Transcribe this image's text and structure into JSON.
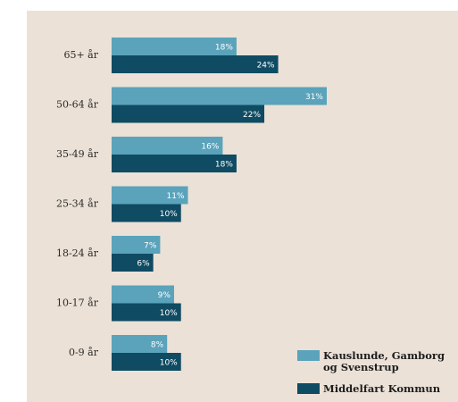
{
  "chart_data": {
    "type": "bar",
    "orientation": "horizontal",
    "categories": [
      "65+ år",
      "50-64 år",
      "35-49 år",
      "25-34 år",
      "18-24 år",
      "10-17 år",
      "0-9 år"
    ],
    "series": [
      {
        "name": "Kauslunde, Gamborg og Svenstrup",
        "name_lines": [
          "Kauslunde, Gamborg",
          "og Svenstrup"
        ],
        "values": [
          18,
          31,
          16,
          11,
          7,
          9,
          8
        ],
        "labels": [
          "18%",
          "31%",
          "16%",
          "11%",
          "7%",
          "9%",
          "8%"
        ],
        "color": "#5aa3bb"
      },
      {
        "name": "Middelfart Kommune",
        "name_lines": [
          "Middelfart Kommun"
        ],
        "values": [
          24,
          22,
          18,
          10,
          6,
          10,
          10
        ],
        "labels": [
          "24%",
          "22%",
          "18%",
          "10%",
          "6%",
          "10%",
          "10%"
        ],
        "color": "#0f4b63"
      }
    ],
    "unit": "%",
    "xlim": [
      0,
      31
    ],
    "grid": false,
    "legend": "bottom-right",
    "background_color": "#ebe1d6"
  }
}
